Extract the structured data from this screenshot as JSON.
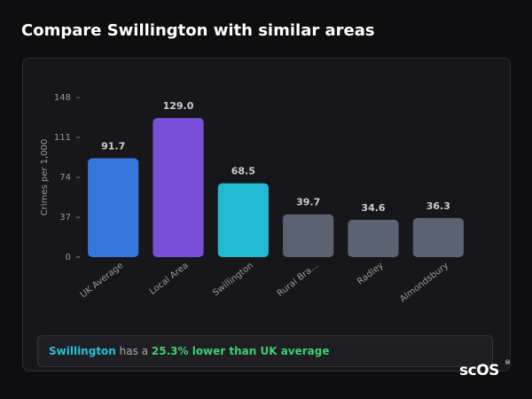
{
  "page_title": "Compare Swillington with similar areas",
  "chart_data": {
    "type": "bar",
    "y_label": "Crimes per 1,000",
    "categories": [
      "UK Average",
      "Local Area",
      "Swillington",
      "Rural Bra...",
      "Radley",
      "Almondsbury"
    ],
    "values": [
      91.7,
      129.0,
      68.5,
      39.7,
      34.6,
      36.3
    ],
    "value_labels": [
      "91.7",
      "129.0",
      "68.5",
      "39.7",
      "34.6",
      "36.3"
    ],
    "colors": [
      "#3577dc",
      "#7a4fd8",
      "#22b9d2",
      "#5b6372",
      "#5b6372",
      "#5b6372"
    ],
    "ylim": [
      0,
      148
    ],
    "yticks": [
      0,
      37,
      74,
      111,
      148
    ]
  },
  "insight": {
    "area": "Swillington",
    "middle": "has a",
    "comparison": "25.3% lower than UK average"
  },
  "logo": "scOS",
  "logo_mark": "®"
}
